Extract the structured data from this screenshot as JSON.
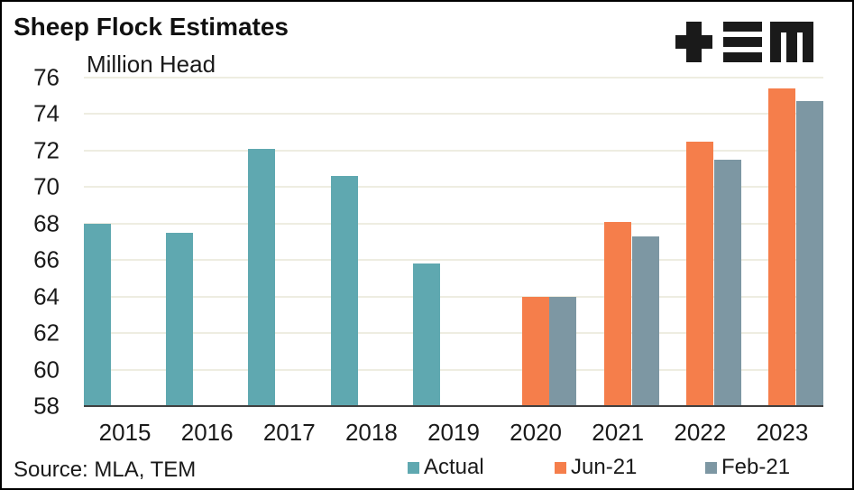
{
  "title": "Sheep Flock Estimates",
  "units_label": "Million Head",
  "source": "Source: MLA, TEM",
  "logo_name": "TEM",
  "colors": {
    "actual": "#5FA8B0",
    "jun21": "#F57E4B",
    "feb21": "#7D97A3",
    "gridline": "#EEEDE1",
    "axis": "#404040",
    "text": "#1A1A1A",
    "border": "#000000",
    "background": "#FFFFFF",
    "logo": "#1A1A1A"
  },
  "chart_data": {
    "type": "bar",
    "title": "Sheep Flock Estimates",
    "ylabel": "Million Head",
    "categories": [
      "2015",
      "2016",
      "2017",
      "2018",
      "2019",
      "2020",
      "2021",
      "2022",
      "2023"
    ],
    "series": [
      {
        "name": "Actual",
        "color_key": "actual",
        "values": [
          68.0,
          67.5,
          72.1,
          70.6,
          65.8,
          null,
          null,
          null,
          null
        ]
      },
      {
        "name": "Jun-21",
        "color_key": "jun21",
        "values": [
          null,
          null,
          null,
          null,
          null,
          64.0,
          68.1,
          72.5,
          75.4
        ]
      },
      {
        "name": "Feb-21",
        "color_key": "feb21",
        "values": [
          null,
          null,
          null,
          null,
          null,
          64.0,
          67.3,
          71.5,
          74.7
        ]
      }
    ],
    "ylim": [
      58,
      76
    ],
    "yticks": [
      58,
      60,
      62,
      64,
      66,
      68,
      70,
      72,
      74,
      76
    ],
    "grid": true,
    "legend_position": "bottom"
  }
}
